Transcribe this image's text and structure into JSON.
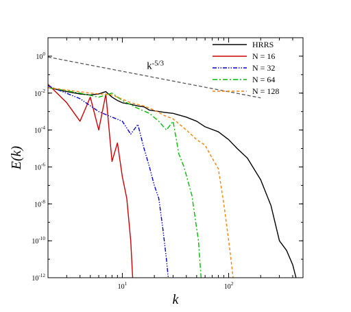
{
  "chart_data": {
    "type": "line",
    "xlabel": "k",
    "ylabel": "E(k)",
    "xscale": "log",
    "yscale": "log",
    "xlim": [
      2,
      500
    ],
    "ylim": [
      1e-12,
      10
    ],
    "x_ticks": [
      {
        "value": 10,
        "base": "10",
        "exp": "1"
      },
      {
        "value": 100,
        "base": "10",
        "exp": "2"
      }
    ],
    "y_ticks": [
      {
        "value": 1,
        "base": "10",
        "exp": "0"
      },
      {
        "value": 0.01,
        "base": "10",
        "exp": "-2"
      },
      {
        "value": 0.0001,
        "base": "10",
        "exp": "-4"
      },
      {
        "value": 1e-06,
        "base": "10",
        "exp": "-6"
      },
      {
        "value": 1e-08,
        "base": "10",
        "exp": "-8"
      },
      {
        "value": 1e-10,
        "base": "10",
        "exp": "-10"
      },
      {
        "value": 1e-12,
        "base": "10",
        "exp": "-12"
      }
    ],
    "legend_position": "top-right",
    "grid": false,
    "annotation": {
      "base": "k",
      "exp": "-5/3",
      "at": [
        17,
        0.2
      ]
    },
    "reference_line": {
      "x": [
        2,
        200
      ],
      "y": [
        0.9,
        0.0055
      ],
      "color": "#555555",
      "dash": "5,3"
    },
    "series": [
      {
        "name": "HRRS",
        "color": "#000000",
        "dash": "",
        "x": [
          2,
          3,
          4,
          5,
          6,
          7,
          8,
          9,
          10,
          12,
          14,
          16,
          18,
          20,
          25,
          30,
          40,
          50,
          60,
          80,
          100,
          120,
          150,
          200,
          250,
          300,
          350,
          400,
          430
        ],
        "y": [
          0.02,
          0.012,
          0.009,
          0.008,
          0.009,
          0.012,
          0.006,
          0.004,
          0.003,
          0.0025,
          0.002,
          0.0018,
          0.0012,
          0.0011,
          0.0009,
          0.0008,
          0.0005,
          0.0003,
          0.00015,
          8e-05,
          3e-05,
          1e-05,
          3e-06,
          2e-07,
          8e-09,
          1e-10,
          3e-11,
          5e-12,
          1e-12
        ]
      },
      {
        "name": "N = 16",
        "color": "#cc0000",
        "dash": "",
        "x": [
          2,
          3,
          4,
          5,
          6,
          7,
          8,
          9,
          10,
          11,
          12,
          12.5
        ],
        "y": [
          0.03,
          0.003,
          0.0003,
          0.006,
          0.0001,
          0.009,
          2e-06,
          2e-05,
          3e-07,
          2e-08,
          1e-10,
          1e-12
        ]
      },
      {
        "name": "N = 32",
        "color": "#0000cc",
        "dash": "6,2,1.5,2,1.5,2",
        "x": [
          2,
          4,
          6,
          8,
          10,
          12,
          14,
          16,
          18,
          20,
          22,
          24,
          26,
          27
        ],
        "y": [
          0.025,
          0.005,
          0.001,
          0.0005,
          0.0003,
          6e-05,
          0.0002,
          1e-05,
          1e-06,
          1e-07,
          2e-08,
          5e-10,
          1e-11,
          1e-12
        ]
      },
      {
        "name": "N = 64",
        "color": "#00bb00",
        "dash": "7,3,2,3",
        "x": [
          2,
          4,
          6,
          8,
          10,
          14,
          18,
          22,
          26,
          30,
          34,
          38,
          45,
          52,
          55
        ],
        "y": [
          0.02,
          0.01,
          0.006,
          0.01,
          0.004,
          0.0015,
          0.0008,
          0.0003,
          0.0001,
          0.0003,
          5e-06,
          1e-06,
          3e-08,
          1e-10,
          1e-12
        ]
      },
      {
        "name": "N = 128",
        "color": "#ff8000",
        "dash": "4,3",
        "x": [
          2,
          5,
          8,
          12,
          16,
          20,
          25,
          30,
          40,
          50,
          60,
          70,
          80,
          90,
          100,
          105,
          110
        ],
        "y": [
          0.02,
          0.01,
          0.008,
          0.003,
          0.002,
          0.0012,
          0.0006,
          0.0004,
          0.0001,
          3e-05,
          1.5e-05,
          3e-06,
          8e-07,
          1e-08,
          1e-10,
          1e-11,
          1e-12
        ]
      }
    ]
  }
}
